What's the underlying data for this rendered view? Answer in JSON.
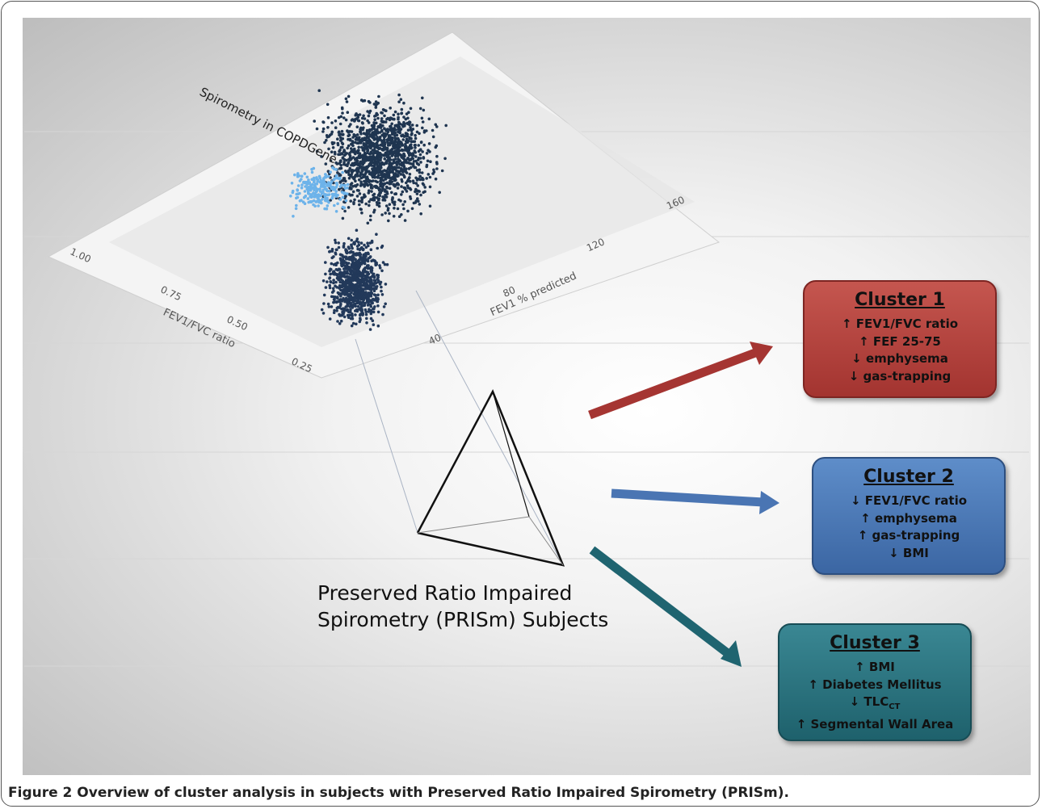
{
  "plot": {
    "title": "Spirometry in COPDGene",
    "x_label": "FEV1 % predicted",
    "y_label": "FEV1/FVC ratio",
    "x_tick_labels": [
      "40",
      "80",
      "120",
      "160"
    ],
    "y_tick_labels": [
      "1.00",
      "0.75",
      "0.50",
      "0.25"
    ]
  },
  "subjects": {
    "lines": [
      "Preserved Ratio Impaired",
      "Spirometry (PRISm) Subjects"
    ]
  },
  "clusters": [
    {
      "title": "Cluster 1",
      "items": [
        "↑ FEV1/FVC ratio",
        "↑ FEF 25-75",
        "↓ emphysema",
        "↓ gas-trapping"
      ]
    },
    {
      "title": "Cluster 2",
      "items": [
        "↓ FEV1/FVC ratio",
        "↑ emphysema",
        "↑ gas-trapping",
        "↓ BMI"
      ]
    },
    {
      "title": "Cluster 3",
      "items": [
        "↑ BMI",
        "↑ Diabetes Mellitus",
        {
          "text": "↓ TLC",
          "subscript": "CT"
        },
        "↑ Segmental Wall Area"
      ]
    }
  ],
  "caption": {
    "label": "Figure 2",
    "text": "Overview of cluster analysis in subjects with Preserved Ratio Impaired Spirometry (PRISm)."
  }
}
